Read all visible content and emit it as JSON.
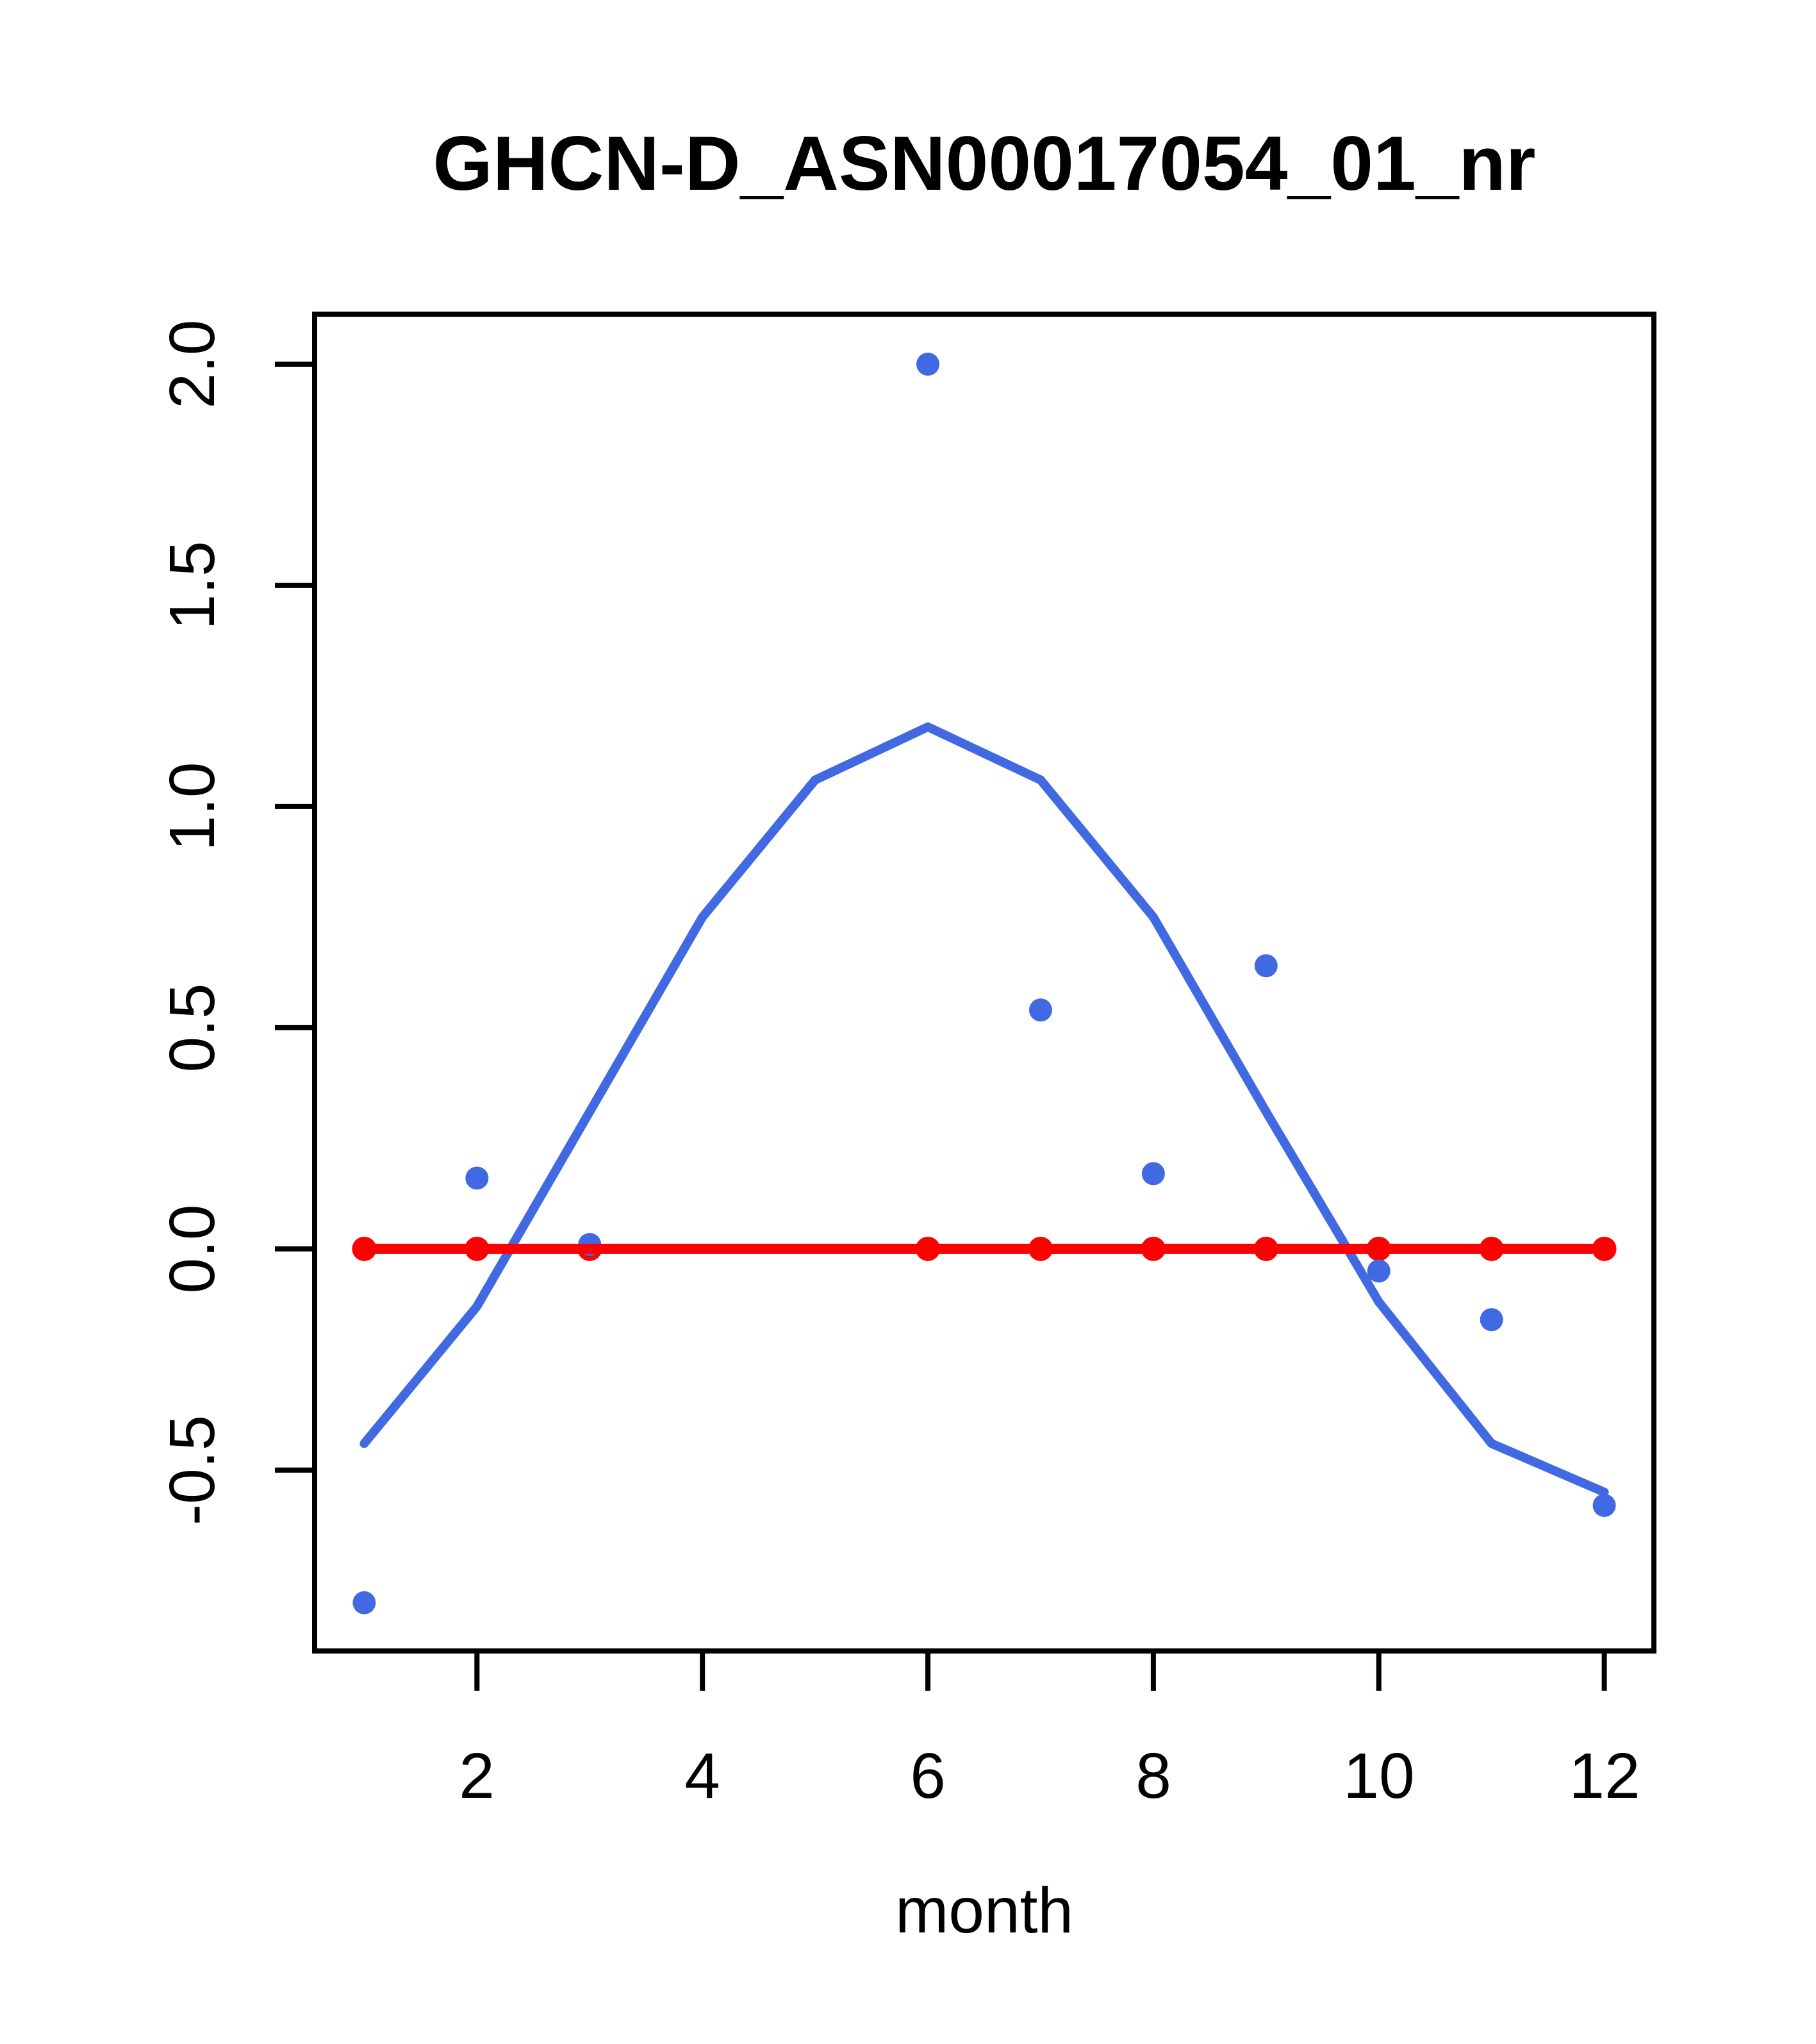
{
  "page": {
    "background": "#ffffff"
  },
  "chart_data": {
    "type": "line",
    "title": "GHCN-D_ASN00017054_01_nr",
    "xlabel": "month",
    "ylabel": "",
    "grid": false,
    "legend": false,
    "xlim": [
      0.56,
      12.44
    ],
    "ylim": [
      -0.909,
      2.113
    ],
    "x_ticks": [
      2,
      4,
      6,
      8,
      10,
      12
    ],
    "x_tick_labels": [
      "2",
      "4",
      "6",
      "8",
      "10",
      "12"
    ],
    "y_ticks": [
      -0.5,
      0.0,
      0.5,
      1.0,
      1.5,
      2.0
    ],
    "y_tick_labels": [
      "-0.5",
      "0.0",
      "0.5",
      "1.0",
      "1.5",
      "2.0"
    ],
    "colors": {
      "fit_line": "#4169E1",
      "scatter_points": "#4169E1",
      "zero_line": "#FF0000",
      "axis": "#000000"
    },
    "series": [
      {
        "name": "seasonal_fit_line",
        "type": "line",
        "color": "#4169E1",
        "x": [
          1,
          2,
          3,
          4,
          5,
          6,
          7,
          8,
          9,
          10,
          11,
          12
        ],
        "y": [
          -0.44,
          -0.13,
          0.31,
          0.75,
          1.06,
          1.18,
          1.06,
          0.75,
          0.31,
          -0.12,
          -0.44,
          -0.55
        ]
      },
      {
        "name": "monthly_points",
        "type": "scatter",
        "color": "#4169E1",
        "x": [
          1,
          2,
          3,
          6,
          7,
          8,
          9,
          10,
          11,
          12
        ],
        "y": [
          -0.8,
          0.16,
          0.01,
          2.0,
          0.54,
          0.17,
          0.64,
          -0.05,
          -0.16,
          -0.58
        ]
      },
      {
        "name": "zero_reference",
        "type": "line+scatter",
        "color": "#FF0000",
        "line_x": [
          1,
          12
        ],
        "line_y": [
          0,
          0
        ],
        "x": [
          1,
          2,
          3,
          6,
          7,
          8,
          9,
          10,
          11,
          12
        ],
        "y": [
          0,
          0,
          0,
          0,
          0,
          0,
          0,
          0,
          0,
          0
        ]
      }
    ]
  }
}
